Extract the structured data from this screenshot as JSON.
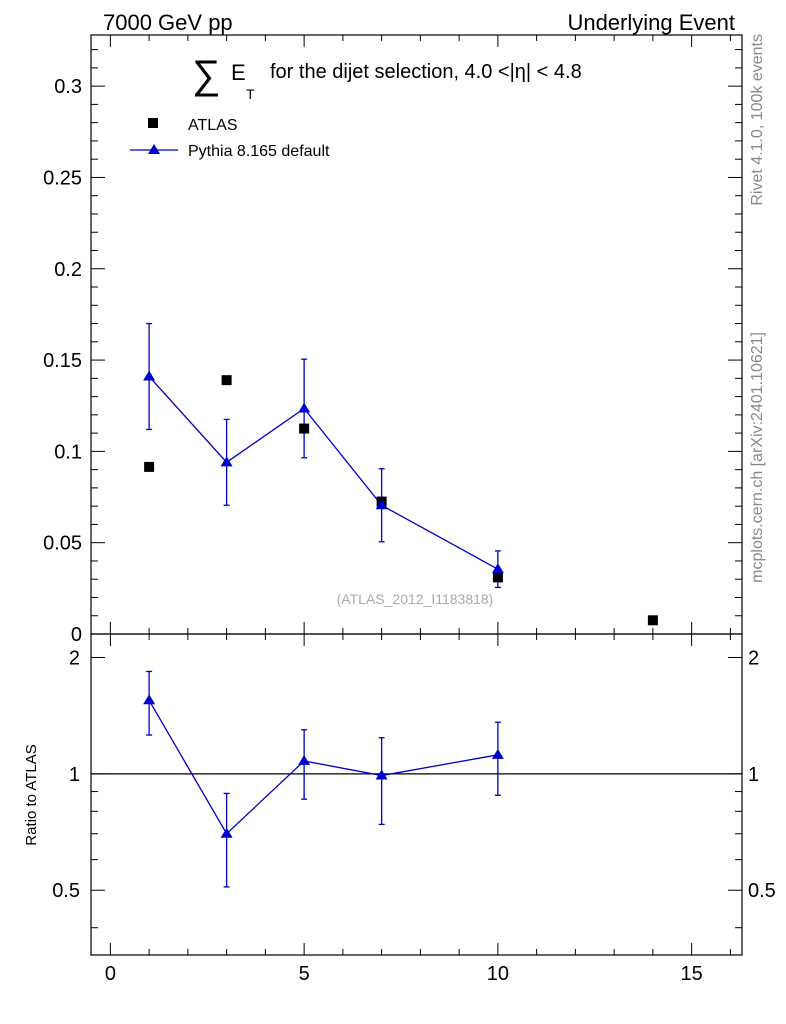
{
  "header": {
    "left": "7000 GeV pp",
    "right": "Underlying Event"
  },
  "side_labels": {
    "rivet": "Rivet 4.1.0,  100k events",
    "mcplots": "mcplots.cern.ch [arXiv:2401.10621]"
  },
  "chart_data": {
    "type": "scatter",
    "title": {
      "sum_symbol": "∑",
      "symbol": "E",
      "subscript": "T",
      "text": "for the dijet selection, 4.0 <|η| < 4.8"
    },
    "watermark": "(ATLAS_2012_I1183818)",
    "legend": {
      "placement": "top-left",
      "entries": [
        "ATLAS",
        "Pythia 8.165 default"
      ]
    },
    "main": {
      "xlim": [
        -0.5,
        16.3
      ],
      "ylim": [
        0,
        0.328
      ],
      "yticks": [
        0,
        0.05,
        0.1,
        0.15,
        0.2,
        0.25,
        0.3
      ],
      "ytick_labels": [
        "0",
        "0.05",
        "0.1",
        "0.15",
        "0.2",
        "0.25",
        "0.3"
      ],
      "series": [
        {
          "name": "ATLAS",
          "marker": "square",
          "color": "#000000",
          "x": [
            1,
            3,
            5,
            7,
            10,
            14
          ],
          "y": [
            0.0915,
            0.139,
            0.1125,
            0.0725,
            0.031,
            0.0075
          ]
        },
        {
          "name": "Pythia 8.165 default",
          "marker": "triangle",
          "color": "#0000cc",
          "x": [
            1,
            3,
            5,
            7,
            10
          ],
          "y": [
            0.141,
            0.094,
            0.1235,
            0.0705,
            0.0355
          ],
          "yerr": [
            0.029,
            0.0235,
            0.027,
            0.02,
            0.01
          ]
        }
      ]
    },
    "ratio": {
      "ylabel": "Ratio to ATLAS",
      "ylim": [
        0.34,
        2.3
      ],
      "yticks": [
        0.5,
        1,
        2
      ],
      "ytick_labels": [
        "0.5",
        "1",
        "2"
      ],
      "reference": 1,
      "series": {
        "name": "Pythia 8.165 default",
        "color": "#0000cc",
        "x": [
          1,
          3,
          5,
          7,
          10
        ],
        "y": [
          1.55,
          0.7,
          1.08,
          0.99,
          1.12
        ],
        "yerr": [
          0.29,
          0.19,
          0.22,
          0.25,
          0.24
        ]
      }
    },
    "xaxis": {
      "ticks": [
        0,
        5,
        10,
        15
      ],
      "tick_labels": [
        "0",
        "5",
        "10",
        "15"
      ]
    }
  }
}
